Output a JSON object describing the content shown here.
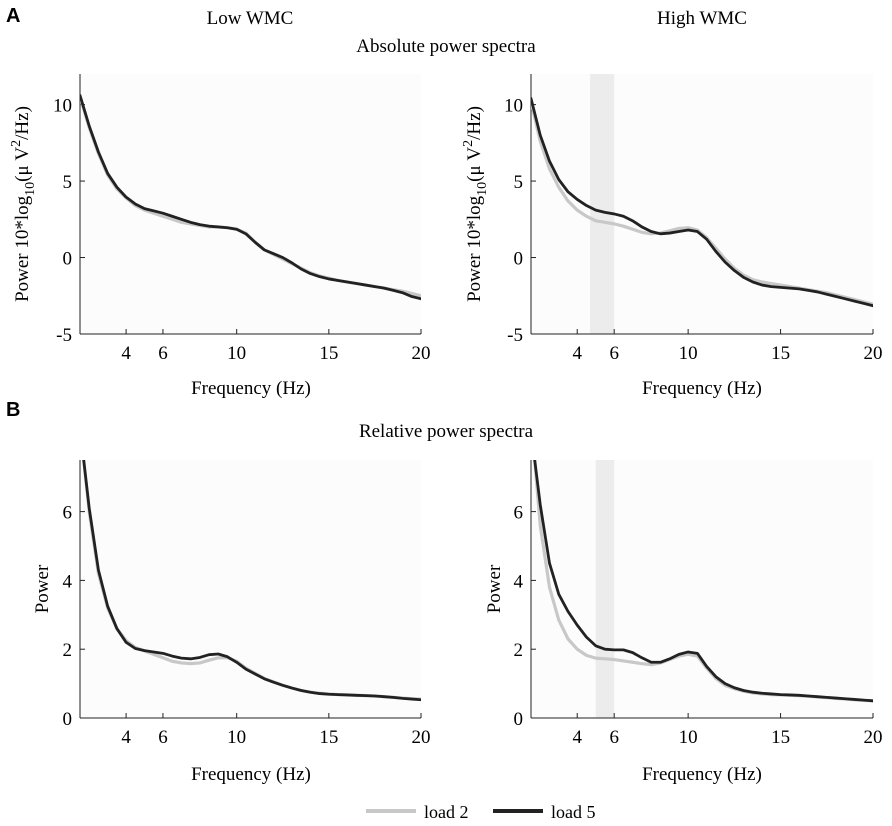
{
  "figure": {
    "panel_a_letter": "A",
    "panel_b_letter": "B",
    "col_left_title": "Low WMC",
    "col_right_title": "High WMC",
    "row_a_title": "Absolute power spectra",
    "row_b_title": "Relative power spectra"
  },
  "legend": [
    {
      "label": "load 2",
      "color": "#c8c8c8"
    },
    {
      "label": "load 5",
      "color": "#222222"
    }
  ],
  "colors": {
    "load2": "#c8c8c8",
    "load5": "#222222",
    "highlight": "#ececec",
    "plot_bg": "#fcfcfc"
  },
  "chart_data": [
    {
      "type": "line",
      "id": "abs-low",
      "title": "Absolute power spectra — Low WMC",
      "xlabel": "Frequency (Hz)",
      "ylabel_prefix": "Power 10*log",
      "ylabel_sub": "10",
      "ylabel_mid": "(μ V",
      "ylabel_sup": "2",
      "ylabel_suffix": "/Hz)",
      "xlim": [
        1.5,
        20
      ],
      "ylim": [
        -5,
        12
      ],
      "xticks": [
        4,
        6,
        10,
        15,
        20
      ],
      "yticks": [
        -5,
        0,
        5,
        10
      ],
      "highlight": null,
      "series": [
        {
          "name": "load 2",
          "x": [
            1.5,
            2,
            2.5,
            3,
            3.5,
            4,
            4.5,
            5,
            5.5,
            6,
            6.5,
            7,
            7.5,
            8,
            8.5,
            9,
            9.5,
            10,
            10.5,
            11,
            11.5,
            12,
            12.5,
            13,
            13.5,
            14,
            14.5,
            15,
            15.5,
            16,
            16.5,
            17,
            17.5,
            18,
            18.5,
            19,
            19.5,
            20
          ],
          "y": [
            10.5,
            8.5,
            6.8,
            5.4,
            4.5,
            3.9,
            3.4,
            3.1,
            2.9,
            2.7,
            2.5,
            2.3,
            2.2,
            2.1,
            2.0,
            2.0,
            1.95,
            1.85,
            1.6,
            1.0,
            0.5,
            0.2,
            -0.1,
            -0.4,
            -0.7,
            -1.0,
            -1.2,
            -1.35,
            -1.5,
            -1.6,
            -1.7,
            -1.8,
            -1.9,
            -2.0,
            -2.1,
            -2.2,
            -2.35,
            -2.5
          ]
        },
        {
          "name": "load 5",
          "x": [
            1.5,
            2,
            2.5,
            3,
            3.5,
            4,
            4.5,
            5,
            5.5,
            6,
            6.5,
            7,
            7.5,
            8,
            8.5,
            9,
            9.5,
            10,
            10.5,
            11,
            11.5,
            12,
            12.5,
            13,
            13.5,
            14,
            14.5,
            15,
            15.5,
            16,
            16.5,
            17,
            17.5,
            18,
            18.5,
            19,
            19.5,
            20
          ],
          "y": [
            10.6,
            8.6,
            6.9,
            5.5,
            4.6,
            3.95,
            3.5,
            3.2,
            3.05,
            2.9,
            2.7,
            2.5,
            2.3,
            2.15,
            2.05,
            2.0,
            1.95,
            1.85,
            1.55,
            1.0,
            0.5,
            0.25,
            0.0,
            -0.35,
            -0.75,
            -1.05,
            -1.25,
            -1.4,
            -1.5,
            -1.6,
            -1.7,
            -1.8,
            -1.9,
            -2.0,
            -2.15,
            -2.3,
            -2.55,
            -2.7
          ]
        }
      ]
    },
    {
      "type": "line",
      "id": "abs-high",
      "title": "Absolute power spectra — High WMC",
      "xlabel": "Frequency (Hz)",
      "ylabel_prefix": "Power 10*log",
      "ylabel_sub": "10",
      "ylabel_mid": "(μ V",
      "ylabel_sup": "2",
      "ylabel_suffix": "/Hz)",
      "xlim": [
        1.5,
        20
      ],
      "ylim": [
        -5,
        12
      ],
      "xticks": [
        4,
        6,
        10,
        15,
        20
      ],
      "yticks": [
        -5,
        0,
        5,
        10
      ],
      "highlight": [
        4.7,
        6.0
      ],
      "series": [
        {
          "name": "load 2",
          "x": [
            1.5,
            2,
            2.5,
            3,
            3.5,
            4,
            4.5,
            5,
            5.5,
            6,
            6.5,
            7,
            7.5,
            8,
            8.5,
            9,
            9.5,
            10,
            10.5,
            11,
            11.5,
            12,
            12.5,
            13,
            13.5,
            14,
            14.5,
            15,
            15.5,
            16,
            16.5,
            17,
            17.5,
            18,
            18.5,
            19,
            19.5,
            20
          ],
          "y": [
            10.2,
            7.6,
            5.8,
            4.6,
            3.7,
            3.1,
            2.7,
            2.4,
            2.3,
            2.2,
            2.05,
            1.85,
            1.65,
            1.55,
            1.6,
            1.75,
            1.9,
            1.95,
            1.8,
            1.3,
            0.6,
            -0.1,
            -0.7,
            -1.15,
            -1.45,
            -1.6,
            -1.7,
            -1.8,
            -1.9,
            -2.0,
            -2.1,
            -2.2,
            -2.3,
            -2.45,
            -2.6,
            -2.75,
            -2.9,
            -3.05
          ]
        },
        {
          "name": "load 5",
          "x": [
            1.5,
            2,
            2.5,
            3,
            3.5,
            4,
            4.5,
            5,
            5.5,
            6,
            6.5,
            7,
            7.5,
            8,
            8.5,
            9,
            9.5,
            10,
            10.5,
            11,
            11.5,
            12,
            12.5,
            13,
            13.5,
            14,
            14.5,
            15,
            15.5,
            16,
            16.5,
            17,
            17.5,
            18,
            18.5,
            19,
            19.5,
            20
          ],
          "y": [
            10.4,
            8.0,
            6.3,
            5.1,
            4.3,
            3.8,
            3.4,
            3.1,
            2.95,
            2.85,
            2.7,
            2.4,
            2.0,
            1.7,
            1.55,
            1.6,
            1.7,
            1.8,
            1.7,
            1.2,
            0.4,
            -0.3,
            -0.85,
            -1.3,
            -1.6,
            -1.8,
            -1.9,
            -1.95,
            -2.0,
            -2.05,
            -2.15,
            -2.25,
            -2.4,
            -2.55,
            -2.7,
            -2.85,
            -3.0,
            -3.15
          ]
        }
      ]
    },
    {
      "type": "line",
      "id": "rel-low",
      "title": "Relative power spectra — Low WMC",
      "xlabel": "Frequency (Hz)",
      "ylabel": "Power",
      "xlim": [
        1.5,
        20
      ],
      "ylim": [
        0,
        7.5
      ],
      "xticks": [
        4,
        6,
        10,
        15,
        20
      ],
      "yticks": [
        0,
        2,
        4,
        6
      ],
      "highlight": null,
      "series": [
        {
          "name": "load 2",
          "x": [
            1.7,
            2,
            2.5,
            3,
            3.5,
            4,
            4.5,
            5,
            5.5,
            6,
            6.5,
            7,
            7.5,
            8,
            8.5,
            9,
            9.5,
            10,
            10.5,
            11,
            11.5,
            12,
            12.5,
            13,
            13.5,
            14,
            14.5,
            15,
            15.5,
            16,
            16.5,
            17,
            17.5,
            18,
            18.5,
            19,
            19.5,
            20
          ],
          "y": [
            7.5,
            6.0,
            4.2,
            3.2,
            2.6,
            2.25,
            2.05,
            1.95,
            1.85,
            1.75,
            1.65,
            1.6,
            1.58,
            1.6,
            1.68,
            1.75,
            1.75,
            1.65,
            1.45,
            1.3,
            1.15,
            1.05,
            0.95,
            0.87,
            0.8,
            0.75,
            0.72,
            0.7,
            0.68,
            0.67,
            0.66,
            0.65,
            0.64,
            0.62,
            0.6,
            0.58,
            0.56,
            0.55
          ]
        },
        {
          "name": "load 5",
          "x": [
            1.7,
            2,
            2.5,
            3,
            3.5,
            4,
            4.5,
            5,
            5.5,
            6,
            6.5,
            7,
            7.5,
            8,
            8.5,
            9,
            9.5,
            10,
            10.5,
            11,
            11.5,
            12,
            12.5,
            13,
            13.5,
            14,
            14.5,
            15,
            15.5,
            16,
            16.5,
            17,
            17.5,
            18,
            18.5,
            19,
            19.5,
            20
          ],
          "y": [
            7.5,
            6.1,
            4.3,
            3.25,
            2.6,
            2.2,
            2.02,
            1.96,
            1.92,
            1.88,
            1.8,
            1.74,
            1.72,
            1.76,
            1.84,
            1.86,
            1.78,
            1.62,
            1.42,
            1.28,
            1.14,
            1.04,
            0.95,
            0.87,
            0.8,
            0.75,
            0.71,
            0.69,
            0.68,
            0.67,
            0.66,
            0.65,
            0.64,
            0.62,
            0.6,
            0.57,
            0.55,
            0.53
          ]
        }
      ]
    },
    {
      "type": "line",
      "id": "rel-high",
      "title": "Relative power spectra — High WMC",
      "xlabel": "Frequency (Hz)",
      "ylabel": "Power",
      "xlim": [
        1.5,
        20
      ],
      "ylim": [
        0,
        7.5
      ],
      "xticks": [
        4,
        6,
        10,
        15,
        20
      ],
      "yticks": [
        0,
        2,
        4,
        6
      ],
      "highlight": [
        5.0,
        6.0
      ],
      "series": [
        {
          "name": "load 2",
          "x": [
            1.7,
            2,
            2.5,
            3,
            3.5,
            4,
            4.5,
            5,
            5.5,
            6,
            6.5,
            7,
            7.5,
            8,
            8.5,
            9,
            9.5,
            10,
            10.5,
            11,
            11.5,
            12,
            12.5,
            13,
            13.5,
            14,
            14.5,
            15,
            15.5,
            16,
            16.5,
            17,
            17.5,
            18,
            18.5,
            19,
            19.5,
            20
          ],
          "y": [
            7.5,
            5.6,
            3.8,
            2.85,
            2.3,
            2.0,
            1.82,
            1.74,
            1.72,
            1.7,
            1.66,
            1.62,
            1.58,
            1.55,
            1.6,
            1.7,
            1.8,
            1.85,
            1.8,
            1.45,
            1.15,
            0.95,
            0.85,
            0.78,
            0.73,
            0.7,
            0.68,
            0.67,
            0.66,
            0.65,
            0.63,
            0.61,
            0.59,
            0.57,
            0.55,
            0.53,
            0.51,
            0.5
          ]
        },
        {
          "name": "load 5",
          "x": [
            1.7,
            2,
            2.5,
            3,
            3.5,
            4,
            4.5,
            5,
            5.5,
            6,
            6.5,
            7,
            7.5,
            8,
            8.5,
            9,
            9.5,
            10,
            10.5,
            11,
            11.5,
            12,
            12.5,
            13,
            13.5,
            14,
            14.5,
            15,
            15.5,
            16,
            16.5,
            17,
            17.5,
            18,
            18.5,
            19,
            19.5,
            20
          ],
          "y": [
            7.5,
            6.2,
            4.5,
            3.6,
            3.1,
            2.7,
            2.35,
            2.1,
            2.0,
            1.98,
            1.98,
            1.9,
            1.75,
            1.62,
            1.62,
            1.72,
            1.85,
            1.92,
            1.88,
            1.5,
            1.2,
            1.0,
            0.88,
            0.8,
            0.75,
            0.72,
            0.7,
            0.68,
            0.67,
            0.66,
            0.64,
            0.62,
            0.6,
            0.58,
            0.56,
            0.54,
            0.52,
            0.5
          ]
        }
      ]
    }
  ]
}
